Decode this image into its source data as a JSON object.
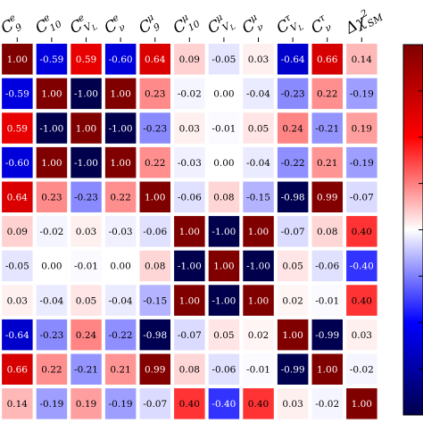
{
  "chart_data": {
    "type": "heatmap",
    "columns": [
      {
        "base": "C",
        "sub": "9",
        "sup": "e"
      },
      {
        "base": "C",
        "sub": "10",
        "sup": "e"
      },
      {
        "base": "C",
        "sub": "V",
        "sup": "e",
        "subsub": "L"
      },
      {
        "base": "C",
        "sub": "ν",
        "sup": "e"
      },
      {
        "base": "C",
        "sub": "9",
        "sup": "μ"
      },
      {
        "base": "C",
        "sub": "10",
        "sup": "μ"
      },
      {
        "base": "C",
        "sub": "V",
        "sup": "μ",
        "subsub": "L"
      },
      {
        "base": "C",
        "sub": "ν",
        "sup": "μ"
      },
      {
        "base": "C",
        "sub": "V",
        "sup": "τ",
        "subsub": "L"
      },
      {
        "base": "C",
        "sub": "ν",
        "sup": "τ"
      },
      {
        "base": "Δχ",
        "sub": "SM",
        "sup": "2"
      }
    ],
    "values": [
      [
        1.0,
        -0.59,
        0.59,
        -0.6,
        0.64,
        0.09,
        -0.05,
        0.03,
        -0.64,
        0.66,
        0.14
      ],
      [
        -0.59,
        1.0,
        -1.0,
        1.0,
        0.23,
        -0.02,
        0.0,
        -0.04,
        -0.23,
        0.22,
        -0.19
      ],
      [
        0.59,
        -1.0,
        1.0,
        -1.0,
        -0.23,
        0.03,
        -0.01,
        0.05,
        0.24,
        -0.21,
        0.19
      ],
      [
        -0.6,
        1.0,
        -1.0,
        1.0,
        0.22,
        -0.03,
        0.0,
        -0.04,
        -0.22,
        0.21,
        -0.19
      ],
      [
        0.64,
        0.23,
        -0.23,
        0.22,
        1.0,
        -0.06,
        0.08,
        -0.15,
        -0.98,
        0.99,
        -0.07
      ],
      [
        0.09,
        -0.02,
        0.03,
        -0.03,
        -0.06,
        1.0,
        -1.0,
        1.0,
        -0.07,
        0.08,
        0.4
      ],
      [
        -0.05,
        0.0,
        -0.01,
        0.0,
        0.08,
        -1.0,
        1.0,
        -1.0,
        0.05,
        -0.06,
        -0.4
      ],
      [
        0.03,
        -0.04,
        0.05,
        -0.04,
        -0.15,
        1.0,
        -1.0,
        1.0,
        0.02,
        -0.01,
        0.4
      ],
      [
        -0.64,
        -0.23,
        0.24,
        -0.22,
        -0.98,
        -0.07,
        0.05,
        0.02,
        1.0,
        -0.99,
        0.03
      ],
      [
        0.66,
        0.22,
        -0.21,
        0.21,
        0.99,
        0.08,
        -0.06,
        -0.01,
        -0.99,
        1.0,
        -0.02
      ],
      [
        0.14,
        -0.19,
        0.19,
        -0.19,
        -0.07,
        0.4,
        -0.4,
        0.4,
        0.03,
        -0.02,
        1.0
      ]
    ],
    "color_range": [
      -1,
      1
    ],
    "colormap": "seismic",
    "colors": {
      "negative": "#00004c",
      "zero": "#ffffff",
      "positive": "#800000"
    }
  }
}
